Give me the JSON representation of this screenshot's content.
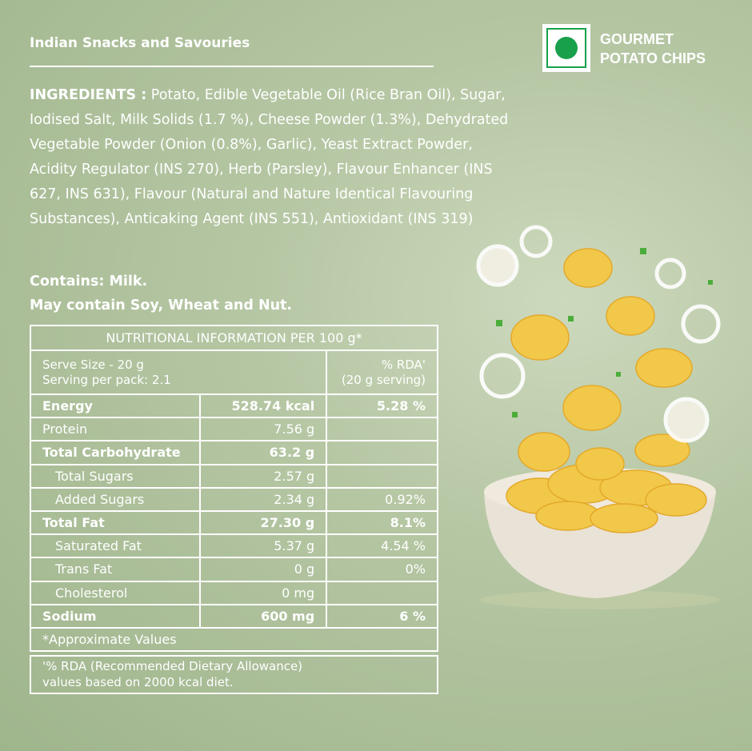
{
  "category": "Indian Snacks and Savouries",
  "brand": {
    "line1": "GOURMET",
    "line2": "POTATO CHIPS",
    "veg_mark_color": "#19a04a"
  },
  "ingredients": {
    "label": "INGREDIENTS :",
    "text": " Potato, Edible Vegetable Oil (Rice Bran Oil), Sugar, Iodised Salt, Milk Solids (1.7 %), Cheese Powder (1.3%), Dehydrated Vegetable Powder (Onion (0.8%), Garlic), Yeast Extract Powder, Acidity Regulator (INS 270), Herb (Parsley), Flavour Enhancer (INS 627, INS 631), Flavour (Natural and Nature Identical Flavouring Substances), Anticaking Agent (INS 551), Antioxidant (INS 319)"
  },
  "allergens": {
    "contains": "Contains: Milk.",
    "may_contain": "May contain Soy, Wheat and Nut."
  },
  "nutrition": {
    "title": "NUTRITIONAL INFORMATION PER 100 g*",
    "serve_size": "Serve Size - 20 g",
    "servings": "Serving per pack: 2.1",
    "rda_header1": "% RDA'",
    "rda_header2": "(20 g serving)",
    "rows": [
      {
        "name": "Energy",
        "value": "528.74 kcal",
        "rda": "5.28 %"
      },
      {
        "name": "Protein",
        "value": "7.56 g",
        "rda": ""
      },
      {
        "name": "Total Carbohydrate",
        "value": "63.2 g",
        "rda": ""
      },
      {
        "name": "Total Sugars",
        "value": "2.57 g",
        "rda": ""
      },
      {
        "name": "Added Sugars",
        "value": "2.34 g",
        "rda": "0.92%"
      },
      {
        "name": "Total Fat",
        "value": "27.30 g",
        "rda": "8.1%"
      },
      {
        "name": "Saturated Fat",
        "value": "5.37 g",
        "rda": "4.54 %"
      },
      {
        "name": "Trans Fat",
        "value": "0 g",
        "rda": "0%"
      },
      {
        "name": "Cholesterol",
        "value": "0 mg",
        "rda": ""
      },
      {
        "name": "Sodium",
        "value": "600 mg",
        "rda": "6 %"
      }
    ],
    "approx": "*Approximate Values",
    "note1": "'% RDA (Recommended Dietary Allowance)",
    "note2": "values based on 2000 kcal diet."
  }
}
